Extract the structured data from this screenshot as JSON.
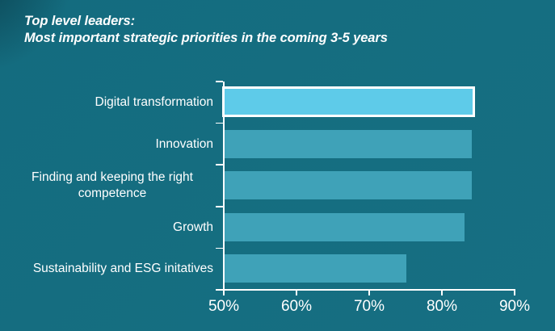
{
  "title": {
    "line1": "Top level leaders:",
    "line2": "Most important strategic priorities in the coming 3-5 years"
  },
  "colors": {
    "background": "#146C7F",
    "background_secondary": "#166F82",
    "bar": "#3FA2B8",
    "highlight_bar": "#5ECBE9",
    "highlight_border": "#FFFFFF",
    "axis": "#FFFFFF",
    "text": "#FFFFFF"
  },
  "chart_data": {
    "type": "bar",
    "orientation": "horizontal",
    "title": "Top level leaders: Most important strategic priorities in the coming 3-5 years",
    "categories": [
      "Digital transformation",
      "Innovation",
      "Finding and keeping the right competence",
      "Growth",
      "Sustainability and ESG initatives"
    ],
    "values": [
      84,
      84,
      84,
      83,
      75
    ],
    "unit": "%",
    "highlighted_category": "Digital transformation",
    "xlim": [
      50,
      90
    ],
    "axis_ticks": [
      "50%",
      "60%",
      "70%",
      "80%",
      "90%"
    ],
    "xlabel": "",
    "ylabel": "",
    "grid": false,
    "legend": false
  }
}
